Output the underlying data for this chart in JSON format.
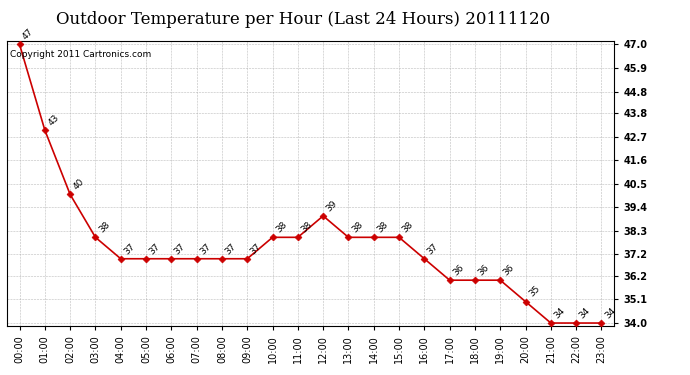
{
  "title": "Outdoor Temperature per Hour (Last 24 Hours) 20111120",
  "copyright_text": "Copyright 2011 Cartronics.com",
  "hours": [
    "00:00",
    "01:00",
    "02:00",
    "03:00",
    "04:00",
    "05:00",
    "06:00",
    "07:00",
    "08:00",
    "09:00",
    "10:00",
    "11:00",
    "12:00",
    "13:00",
    "14:00",
    "15:00",
    "16:00",
    "17:00",
    "18:00",
    "19:00",
    "20:00",
    "21:00",
    "22:00",
    "23:00"
  ],
  "temps": [
    47,
    43,
    40,
    38,
    37,
    37,
    37,
    37,
    37,
    37,
    38,
    38,
    39,
    38,
    38,
    38,
    37,
    36,
    36,
    36,
    35,
    34,
    34,
    34
  ],
  "line_color": "#cc0000",
  "marker_color": "#cc0000",
  "bg_color": "#ffffff",
  "grid_color": "#aaaaaa",
  "ylim_min": 33.85,
  "ylim_max": 47.15,
  "yticks": [
    34.0,
    35.1,
    36.2,
    37.2,
    38.3,
    39.4,
    40.5,
    41.6,
    42.7,
    43.8,
    44.8,
    45.9,
    47.0
  ],
  "title_fontsize": 12,
  "annot_fontsize": 6.5,
  "tick_fontsize": 7,
  "copyright_fontsize": 6.5
}
